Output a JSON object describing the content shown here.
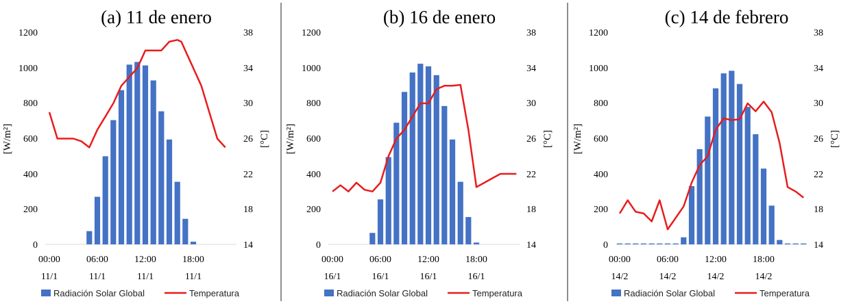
{
  "colors": {
    "bar": "#4472C4",
    "line": "#E81C1C",
    "divider": "#444444",
    "axis": "#D9D9D9"
  },
  "chart_data": [
    {
      "type": "bar+line",
      "title": "(a)  11 de enero",
      "ylabel_left": "[W/m²]",
      "ylabel_right": "[°C]",
      "ylim_left": [
        0,
        1200
      ],
      "ylim_right": [
        14,
        38
      ],
      "yticks_left": [
        "0",
        "200",
        "400",
        "600",
        "800",
        "1000",
        "1200"
      ],
      "yticks_right": [
        "14",
        "18",
        "22",
        "26",
        "30",
        "34",
        "38"
      ],
      "xtick_times": [
        "00:00",
        "06:00",
        "12:00",
        "18:00"
      ],
      "xtick_dates": [
        "11/1",
        "11/1",
        "11/1",
        "11/1"
      ],
      "legend": [
        "Radiación Solar Global",
        "Temperatura"
      ],
      "hours": [
        0,
        1,
        2,
        3,
        4,
        5,
        6,
        7,
        8,
        9,
        10,
        11,
        12,
        13,
        14,
        15,
        16,
        17,
        18,
        19,
        20,
        21,
        22,
        23
      ],
      "radiation": [
        0,
        0,
        0,
        0,
        0,
        75,
        270,
        500,
        705,
        875,
        1020,
        1035,
        1015,
        930,
        755,
        595,
        355,
        145,
        15,
        0,
        0,
        0,
        0,
        0
      ],
      "temperature_x": [
        0,
        1,
        2,
        3,
        4,
        5,
        6,
        7,
        8,
        9,
        10,
        11,
        12,
        13,
        14,
        15,
        16,
        16.5,
        17,
        18,
        19,
        20,
        21,
        22,
        23
      ],
      "temperature": [
        29,
        26,
        26,
        26,
        25.7,
        25,
        27,
        28.5,
        30,
        32,
        33,
        34,
        36,
        36,
        36,
        37,
        37.2,
        37,
        36,
        34,
        32,
        29,
        26,
        25
      ]
    },
    {
      "type": "bar+line",
      "title": "(b)  16 de enero",
      "ylabel_left": "[W/m²]",
      "ylabel_right": "[°C]",
      "ylim_left": [
        0,
        1200
      ],
      "ylim_right": [
        14,
        38
      ],
      "yticks_left": [
        "0",
        "200",
        "400",
        "600",
        "800",
        "1000",
        "1200"
      ],
      "yticks_right": [
        "14",
        "18",
        "22",
        "26",
        "30",
        "34",
        "38"
      ],
      "xtick_times": [
        "00:00",
        "06:00",
        "12:00",
        "18:00"
      ],
      "xtick_dates": [
        "16/1",
        "16/1",
        "16/1",
        "16/1"
      ],
      "legend": [
        "Radiación Solar Global",
        "Temperatura"
      ],
      "hours": [
        0,
        1,
        2,
        3,
        4,
        5,
        6,
        7,
        8,
        9,
        10,
        11,
        12,
        13,
        14,
        15,
        16,
        17,
        18,
        19,
        20,
        21,
        22,
        23
      ],
      "radiation": [
        0,
        0,
        0,
        0,
        0,
        65,
        255,
        495,
        690,
        865,
        975,
        1025,
        1010,
        960,
        785,
        595,
        355,
        155,
        10,
        0,
        0,
        0,
        0,
        0
      ],
      "temperature_x": [
        0,
        1,
        2,
        3,
        4,
        5,
        6,
        7,
        8,
        9,
        10,
        11,
        12,
        13,
        14,
        15,
        16,
        17,
        18,
        19,
        20,
        21,
        22,
        23
      ],
      "temperature": [
        20,
        20.7,
        20,
        21,
        20.2,
        20,
        21,
        24,
        26,
        27,
        28.5,
        30,
        30,
        31.6,
        32,
        32,
        32.1,
        27,
        20.5,
        21,
        21.5,
        22,
        22,
        22
      ]
    },
    {
      "type": "bar+line",
      "title": "(c)  14 de febrero",
      "ylabel_left": "[W/m²]",
      "ylabel_right": "[°C]",
      "ylim_left": [
        0,
        1200
      ],
      "ylim_right": [
        14,
        38
      ],
      "yticks_left": [
        "0",
        "200",
        "400",
        "600",
        "800",
        "1000",
        "1200"
      ],
      "yticks_right": [
        "14",
        "18",
        "22",
        "26",
        "30",
        "34",
        "38"
      ],
      "xtick_times": [
        "00:00",
        "06:00",
        "12:00",
        "18:00"
      ],
      "xtick_dates": [
        "14/2",
        "14/2",
        "14/2",
        "14/2"
      ],
      "legend": [
        "Radiación Solar Global",
        "Temperatura"
      ],
      "hours": [
        0,
        1,
        2,
        3,
        4,
        5,
        6,
        7,
        8,
        9,
        10,
        11,
        12,
        13,
        14,
        15,
        16,
        17,
        18,
        19,
        20,
        21,
        22,
        23
      ],
      "radiation": [
        5,
        5,
        5,
        5,
        5,
        5,
        5,
        5,
        40,
        330,
        540,
        725,
        885,
        970,
        985,
        910,
        780,
        625,
        430,
        220,
        25,
        5,
        5,
        5
      ],
      "temperature_x": [
        0,
        1,
        2,
        3,
        4,
        5,
        6,
        7,
        8,
        9,
        10,
        11,
        12,
        13,
        14,
        15,
        16,
        17,
        18,
        19,
        20,
        21,
        22,
        23
      ],
      "temperature": [
        17.5,
        19,
        17.7,
        17.5,
        16.6,
        19,
        15.7,
        17,
        18.3,
        21,
        23,
        24,
        27,
        28.3,
        28.1,
        28.2,
        30,
        29.1,
        30.2,
        29,
        25.5,
        20.5,
        20,
        19.3
      ]
    }
  ]
}
